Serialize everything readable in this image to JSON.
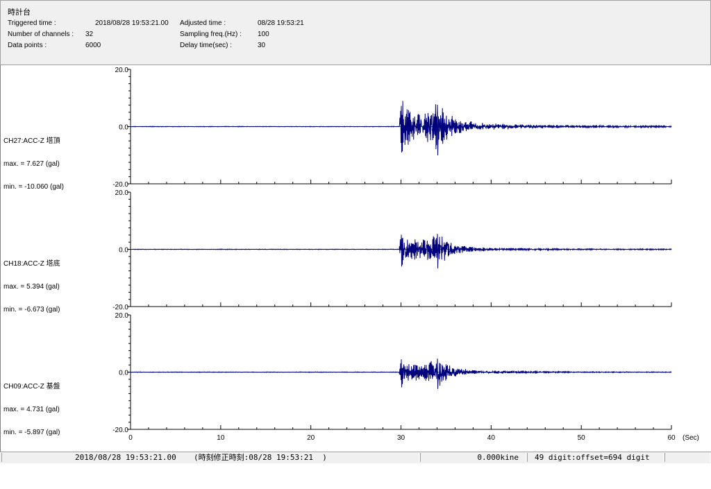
{
  "header": {
    "title": "時計台",
    "fields": {
      "triggered_label": "Triggered time :",
      "triggered_value": "2018/08/28 19:53:21.00",
      "channels_label": "Number of channels :",
      "channels_value": "32",
      "datapoints_label": "Data points :",
      "datapoints_value": "6000",
      "adjusted_label": "Adjusted time :",
      "adjusted_value": "08/28 19:53:21",
      "sampling_label": "Sampling freq.(Hz) :",
      "sampling_value": "100",
      "delay_label": "Delay time(sec) :",
      "delay_value": "30"
    }
  },
  "channels": [
    {
      "name": "CH27:ACC-Z 塔頂",
      "max_text": "max. = 7.627 (gal)",
      "min_text": "min. = -10.060 (gal)"
    },
    {
      "name": "CH18:ACC-Z 塔底",
      "max_text": "max. = 5.394 (gal)",
      "min_text": "min. = -6.673 (gal)"
    },
    {
      "name": "CH09:ACC-Z 基盤",
      "max_text": "max. = 4.731 (gal)",
      "min_text": "min. = -5.897 (gal)"
    }
  ],
  "statusbar": {
    "time": "2018/08/28 19:53:21.00",
    "adjusted": "(時刻修正時刻:08/28 19:53:21  )",
    "velocity": "0.000kine",
    "digits": "49 digit:offset=694 digit"
  },
  "chart_data": {
    "type": "line",
    "x_unit_label": "(Sec)",
    "xlim": [
      0,
      60
    ],
    "x_ticks": [
      0,
      10,
      20,
      30,
      40,
      50,
      60
    ],
    "x_tick_labels": [
      "0",
      "10",
      "20",
      "30",
      "40",
      "50",
      "60"
    ],
    "ylim": [
      -20,
      20
    ],
    "y_tick_labels": [
      "20.0",
      "0.0",
      "-20.0"
    ],
    "grid": false,
    "line_color": "#00007f",
    "zero_line_color": "#008080",
    "series": [
      {
        "name": "CH27:ACC-Z 塔頂",
        "trigger_sec": 30,
        "max": 7.627,
        "min": -10.06,
        "envelope": [
          [
            0,
            0.08
          ],
          [
            29.8,
            0.08
          ],
          [
            30,
            9.0
          ],
          [
            31,
            5.5
          ],
          [
            32,
            4.0
          ],
          [
            33,
            5.0
          ],
          [
            34,
            8.0
          ],
          [
            35,
            5.0
          ],
          [
            36,
            3.0
          ],
          [
            37,
            2.0
          ],
          [
            38,
            1.5
          ],
          [
            40,
            1.0
          ],
          [
            45,
            0.6
          ],
          [
            50,
            0.4
          ],
          [
            55,
            0.3
          ],
          [
            60,
            0.25
          ]
        ]
      },
      {
        "name": "CH18:ACC-Z 塔底",
        "trigger_sec": 30,
        "max": 5.394,
        "min": -6.673,
        "envelope": [
          [
            0,
            0.08
          ],
          [
            29.8,
            0.08
          ],
          [
            30,
            6.0
          ],
          [
            31,
            3.5
          ],
          [
            32,
            3.0
          ],
          [
            33,
            3.5
          ],
          [
            34,
            5.5
          ],
          [
            35,
            3.5
          ],
          [
            36,
            2.0
          ],
          [
            37,
            1.2
          ],
          [
            38,
            0.8
          ],
          [
            40,
            0.5
          ],
          [
            45,
            0.3
          ],
          [
            50,
            0.2
          ],
          [
            60,
            0.15
          ]
        ]
      },
      {
        "name": "CH09:ACC-Z 基盤",
        "trigger_sec": 30,
        "max": 4.731,
        "min": -5.897,
        "envelope": [
          [
            0,
            0.08
          ],
          [
            29.8,
            0.08
          ],
          [
            30,
            5.5
          ],
          [
            31,
            3.0
          ],
          [
            32,
            2.5
          ],
          [
            33,
            3.0
          ],
          [
            34,
            5.0
          ],
          [
            35,
            3.0
          ],
          [
            36,
            1.5
          ],
          [
            37,
            1.0
          ],
          [
            38,
            0.6
          ],
          [
            40,
            0.4
          ],
          [
            45,
            0.25
          ],
          [
            50,
            0.15
          ],
          [
            60,
            0.1
          ]
        ]
      }
    ]
  }
}
